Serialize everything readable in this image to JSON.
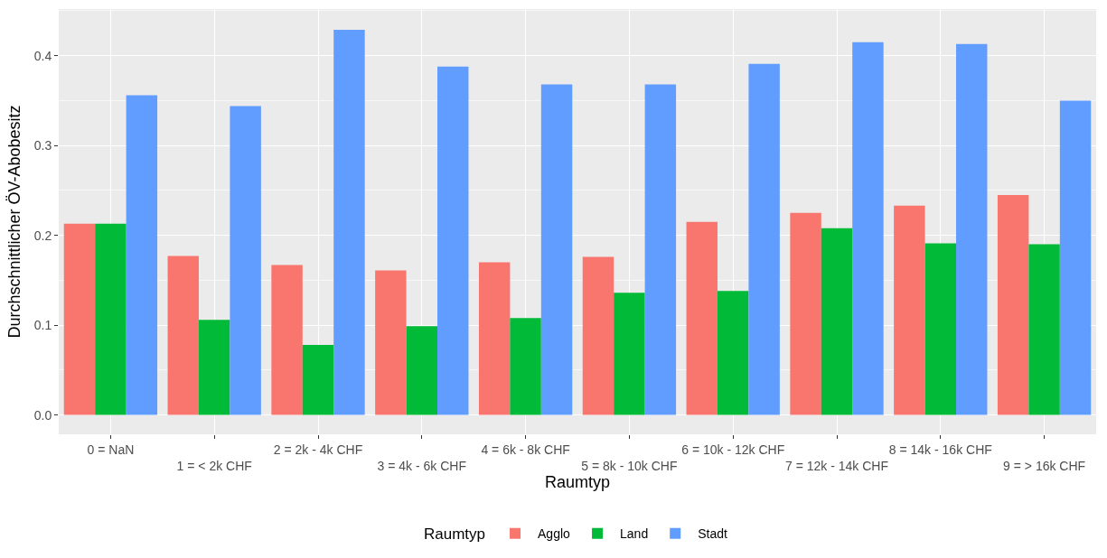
{
  "chart_data": {
    "type": "bar",
    "xlabel": "Raumtyp",
    "ylabel": "Durchschnittlicher ÖV-Abobesitz",
    "legend_title": "Raumtyp",
    "categories": [
      "0 = NaN",
      "1 = < 2k CHF",
      "2 = 2k - 4k CHF",
      "3 = 4k - 6k CHF",
      "4 = 6k - 8k CHF",
      "5 = 8k - 10k CHF",
      "6 = 10k - 12k CHF",
      "7 = 12k - 14k CHF",
      "8 = 14k - 16k CHF",
      "9 = > 16k CHF"
    ],
    "series": [
      {
        "name": "Agglo",
        "color": "#f8766d",
        "values": [
          0.213,
          0.177,
          0.167,
          0.161,
          0.17,
          0.176,
          0.215,
          0.225,
          0.233,
          0.245
        ]
      },
      {
        "name": "Land",
        "color": "#00ba38",
        "values": [
          0.213,
          0.106,
          0.078,
          0.099,
          0.108,
          0.136,
          0.138,
          0.208,
          0.191,
          0.19
        ]
      },
      {
        "name": "Stadt",
        "color": "#619cff",
        "values": [
          0.356,
          0.344,
          0.429,
          0.388,
          0.368,
          0.368,
          0.391,
          0.415,
          0.413,
          0.35
        ]
      }
    ],
    "ylim": [
      -0.0215,
      0.452
    ],
    "yticks": [
      {
        "value": 0,
        "label": "0.0"
      },
      0.1,
      0.2,
      0.3,
      0.4
    ],
    "grid": true,
    "legend": "bottom"
  }
}
